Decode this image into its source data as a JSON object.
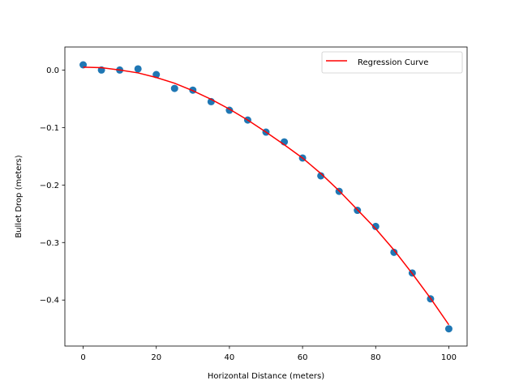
{
  "chart_data": {
    "type": "scatter",
    "title": "",
    "xlabel": "Horizontal Distance (meters)",
    "ylabel": "Bullet Drop (meters)",
    "xlim": [
      -5,
      105
    ],
    "ylim": [
      -0.48,
      0.04
    ],
    "xticks": [
      0,
      20,
      40,
      60,
      80,
      100
    ],
    "xtick_labels": [
      "0",
      "20",
      "40",
      "60",
      "80",
      "100"
    ],
    "yticks": [
      0.0,
      -0.1,
      -0.2,
      -0.3,
      -0.4
    ],
    "ytick_labels": [
      "0.0",
      "−0.1",
      "−0.2",
      "−0.3",
      "−0.4"
    ],
    "grid": false,
    "legend_position": "top-right",
    "series": [
      {
        "type": "scatter",
        "color": "#1f77b4",
        "x": [
          0,
          5,
          10,
          15,
          20,
          25,
          30,
          35,
          40,
          45,
          50,
          55,
          60,
          65,
          70,
          75,
          80,
          85,
          90,
          95,
          100
        ],
        "y": [
          0.009,
          0.0,
          0.0,
          0.002,
          -0.008,
          -0.032,
          -0.035,
          -0.055,
          -0.07,
          -0.087,
          -0.108,
          -0.125,
          -0.153,
          -0.184,
          -0.211,
          -0.244,
          -0.272,
          -0.317,
          -0.353,
          -0.398,
          -0.45
        ]
      },
      {
        "type": "line",
        "name": "Regression Curve",
        "color": "#ff0000",
        "x": [
          0,
          5,
          10,
          15,
          20,
          25,
          30,
          35,
          40,
          45,
          50,
          55,
          60,
          65,
          70,
          75,
          80,
          85,
          90,
          95,
          100
        ],
        "y": [
          0.005,
          0.004,
          0.0,
          -0.005,
          -0.013,
          -0.023,
          -0.036,
          -0.051,
          -0.068,
          -0.087,
          -0.108,
          -0.13,
          -0.153,
          -0.18,
          -0.21,
          -0.243,
          -0.276,
          -0.313,
          -0.354,
          -0.397,
          -0.443
        ]
      }
    ]
  }
}
